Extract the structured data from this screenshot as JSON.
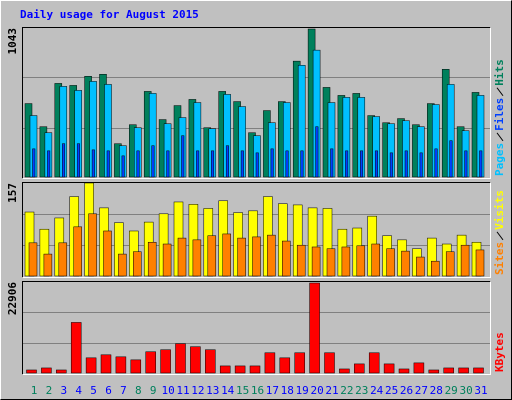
{
  "chart_data": [
    {
      "type": "bar",
      "title": "Daily usage for August 2015",
      "ylim": [
        0,
        1043
      ],
      "yticks": [
        1043
      ],
      "series": [
        {
          "name": "Hits",
          "color": "#00805C",
          "values": [
            514,
            352,
            655,
            641,
            705,
            719,
            233,
            366,
            599,
            402,
            500,
            543,
            345,
            599,
            528,
            310,
            465,
            528,
            811,
            1036,
            627,
            571,
            585,
            430,
            380,
            409,
            366,
            514,
            754,
            352,
            592
          ]
        },
        {
          "name": "Files",
          "color": "#0040FF",
          "values": [
            197,
            183,
            233,
            233,
            190,
            183,
            148,
            183,
            219,
            183,
            289,
            183,
            183,
            219,
            183,
            169,
            197,
            183,
            183,
            352,
            197,
            183,
            183,
            183,
            169,
            183,
            169,
            197,
            254,
            183,
            183
          ]
        },
        {
          "name": "Pages",
          "color": "#00C0FF",
          "values": [
            430,
            310,
            634,
            606,
            669,
            648,
            219,
            345,
            585,
            373,
            416,
            521,
            338,
            578,
            493,
            289,
            380,
            521,
            782,
            888,
            521,
            557,
            557,
            423,
            373,
            394,
            352,
            507,
            648,
            324,
            571
          ]
        }
      ]
    },
    {
      "type": "bar",
      "ylim": [
        0,
        157
      ],
      "yticks": [
        157
      ],
      "series": [
        {
          "name": "Visits",
          "color": "#FFFF00",
          "values": [
            108,
            79,
            98,
            134,
            157,
            115,
            90,
            76,
            91,
            105,
            125,
            121,
            114,
            127,
            107,
            110,
            134,
            122,
            120,
            115,
            114,
            79,
            81,
            101,
            68,
            61,
            46,
            64,
            54,
            69,
            57
          ]
        },
        {
          "name": "Sites",
          "color": "#FF8000",
          "values": [
            56,
            37,
            56,
            83,
            105,
            76,
            37,
            41,
            57,
            54,
            64,
            61,
            68,
            71,
            64,
            66,
            69,
            59,
            52,
            49,
            46,
            49,
            51,
            54,
            46,
            42,
            32,
            25,
            41,
            52,
            44
          ]
        }
      ]
    },
    {
      "type": "bar",
      "ylim": [
        0,
        22906
      ],
      "yticks": [
        22906
      ],
      "categories": [
        "1",
        "2",
        "3",
        "4",
        "5",
        "6",
        "7",
        "8",
        "9",
        "10",
        "11",
        "12",
        "13",
        "14",
        "15",
        "16",
        "17",
        "18",
        "19",
        "20",
        "21",
        "22",
        "23",
        "24",
        "25",
        "26",
        "27",
        "28",
        "29",
        "30",
        "31"
      ],
      "category_colors": [
        "#00805C",
        "#00805C",
        "#0000FF",
        "#0000FF",
        "#0000FF",
        "#0000FF",
        "#0000FF",
        "#00805C",
        "#00805C",
        "#0000FF",
        "#0000FF",
        "#0000FF",
        "#0000FF",
        "#0000FF",
        "#00805C",
        "#00805C",
        "#0000FF",
        "#0000FF",
        "#0000FF",
        "#0000FF",
        "#0000FF",
        "#00805C",
        "#00805C",
        "#0000FF",
        "#0000FF",
        "#0000FF",
        "#0000FF",
        "#0000FF",
        "#00805C",
        "#00805C",
        "#0000FF"
      ],
      "series": [
        {
          "name": "KBytes",
          "color": "#FF0000",
          "values": [
            764,
            1272,
            764,
            12725,
            3818,
            4581,
            4072,
            3309,
            5345,
            5854,
            7381,
            6618,
            5854,
            1781,
            1781,
            1781,
            5090,
            3818,
            5090,
            22651,
            5090,
            1018,
            2290,
            5090,
            2290,
            1018,
            2545,
            764,
            1272,
            1272,
            1272
          ]
        }
      ]
    }
  ]
}
